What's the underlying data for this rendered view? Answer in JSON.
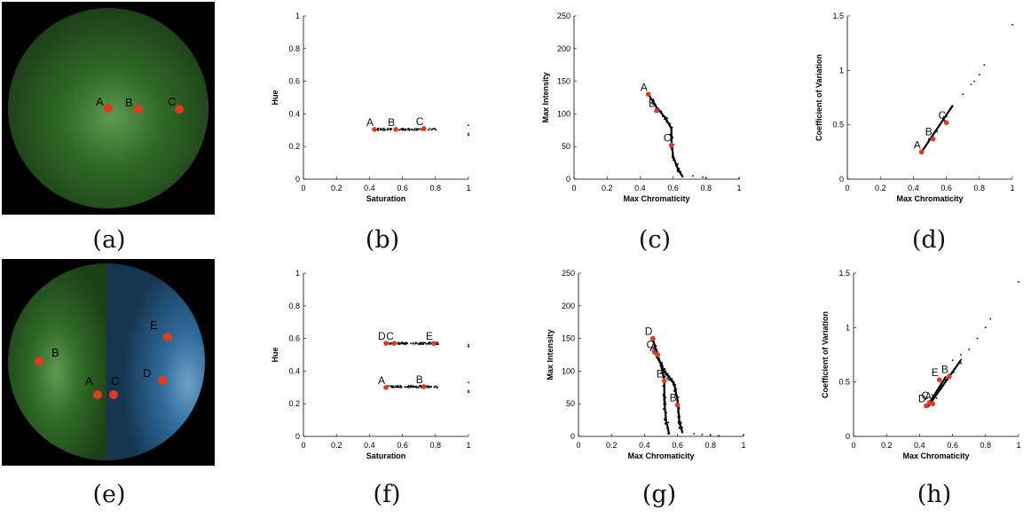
{
  "panels": [
    {
      "caption": "(a)",
      "type": "photo",
      "variant": "green",
      "points": [
        {
          "label": "A"
        },
        {
          "label": "B"
        },
        {
          "label": "C"
        }
      ]
    },
    {
      "caption": "(b)",
      "type": "chart",
      "variant": "hue_single"
    },
    {
      "caption": "(c)",
      "type": "chart",
      "variant": "int_single"
    },
    {
      "caption": "(d)",
      "type": "chart",
      "variant": "cov_single"
    },
    {
      "caption": "(e)",
      "type": "photo",
      "variant": "split",
      "points": [
        {
          "label": "A"
        },
        {
          "label": "B"
        },
        {
          "label": "C"
        },
        {
          "label": "D"
        },
        {
          "label": "E"
        }
      ]
    },
    {
      "caption": "(f)",
      "type": "chart",
      "variant": "hue_dual"
    },
    {
      "caption": "(g)",
      "type": "chart",
      "variant": "int_dual"
    },
    {
      "caption": "(h)",
      "type": "chart",
      "variant": "cov_dual"
    }
  ],
  "colors": {
    "marker": "#e23a1c",
    "green": "#2f6a26",
    "blue": "#2f6c9c",
    "cluster": "#000000"
  },
  "chart_data": [
    {
      "id": "b",
      "type": "scatter",
      "xlabel": "Saturation",
      "ylabel": "Hue",
      "xlim": [
        0,
        1
      ],
      "ylim": [
        0,
        1
      ],
      "xticks": [
        "0",
        "0.2",
        "0.4",
        "0.6",
        "0.8",
        "1"
      ],
      "yticks": [
        "0",
        "0.2",
        "0.4",
        "0.6",
        "0.8",
        "1"
      ],
      "labeled_points": [
        {
          "label": "A",
          "x": 0.43,
          "y": 0.305
        },
        {
          "label": "B",
          "x": 0.56,
          "y": 0.305
        },
        {
          "label": "C",
          "x": 0.73,
          "y": 0.31
        }
      ],
      "clusters": [
        {
          "x_range": [
            0.42,
            0.82
          ],
          "y": 0.305,
          "y_spread": 0.006
        }
      ],
      "outliers": [
        {
          "x": 1.0,
          "y": 0.33
        },
        {
          "x": 1.0,
          "y": 0.28
        },
        {
          "x": 1.0,
          "y": 0.27
        }
      ]
    },
    {
      "id": "c",
      "type": "scatter",
      "xlabel": "Max Chromaticity",
      "ylabel": "Max Intensity",
      "xlim": [
        0,
        1
      ],
      "ylim": [
        0,
        250
      ],
      "xticks": [
        "0",
        "0.2",
        "0.4",
        "0.6",
        "0.8",
        "1"
      ],
      "yticks": [
        "0",
        "50",
        "100",
        "150",
        "200",
        "250"
      ],
      "labeled_points": [
        {
          "label": "A",
          "x": 0.45,
          "y": 130
        },
        {
          "label": "B",
          "x": 0.5,
          "y": 105
        },
        {
          "label": "C",
          "x": 0.59,
          "y": 52
        }
      ],
      "curve": [
        [
          0.45,
          130
        ],
        [
          0.5,
          110
        ],
        [
          0.55,
          95
        ],
        [
          0.59,
          78
        ],
        [
          0.59,
          60
        ],
        [
          0.6,
          35
        ],
        [
          0.63,
          15
        ],
        [
          0.66,
          3
        ]
      ],
      "outliers": [
        {
          "x": 0.72,
          "y": 5
        },
        {
          "x": 0.78,
          "y": 3
        },
        {
          "x": 0.8,
          "y": 2
        },
        {
          "x": 1.0,
          "y": 1
        }
      ]
    },
    {
      "id": "d",
      "type": "scatter",
      "xlabel": "Max Chromaticity",
      "ylabel": "Coefficient of Variation",
      "xlim": [
        0,
        1
      ],
      "ylim": [
        0,
        1.5
      ],
      "xticks": [
        "0",
        "0.2",
        "0.4",
        "0.6",
        "0.8",
        "1"
      ],
      "yticks": [
        "0",
        "0.5",
        "1",
        "1.5"
      ],
      "labeled_points": [
        {
          "label": "A",
          "x": 0.45,
          "y": 0.25
        },
        {
          "label": "B",
          "x": 0.52,
          "y": 0.37
        },
        {
          "label": "C",
          "x": 0.6,
          "y": 0.52
        }
      ],
      "line": [
        [
          0.45,
          0.25
        ],
        [
          0.64,
          0.68
        ]
      ],
      "outliers": [
        {
          "x": 0.7,
          "y": 0.78
        },
        {
          "x": 0.75,
          "y": 0.87
        },
        {
          "x": 0.77,
          "y": 0.9
        },
        {
          "x": 0.8,
          "y": 0.96
        },
        {
          "x": 0.83,
          "y": 1.05
        },
        {
          "x": 1.0,
          "y": 1.42
        }
      ]
    },
    {
      "id": "f",
      "type": "scatter",
      "xlabel": "Saturation",
      "ylabel": "Hue",
      "xlim": [
        0,
        1
      ],
      "ylim": [
        0,
        1
      ],
      "xticks": [
        "0",
        "0.2",
        "0.4",
        "0.6",
        "0.8",
        "1"
      ],
      "yticks": [
        "0",
        "0.2",
        "0.4",
        "0.6",
        "0.8",
        "1"
      ],
      "labeled_points": [
        {
          "label": "D",
          "x": 0.5,
          "y": 0.57
        },
        {
          "label": "C",
          "x": 0.55,
          "y": 0.57
        },
        {
          "label": "E",
          "x": 0.79,
          "y": 0.57
        },
        {
          "label": "A",
          "x": 0.5,
          "y": 0.3
        },
        {
          "label": "B",
          "x": 0.73,
          "y": 0.305
        }
      ],
      "clusters": [
        {
          "x_range": [
            0.5,
            0.82
          ],
          "y": 0.57,
          "y_spread": 0.006
        },
        {
          "x_range": [
            0.5,
            0.82
          ],
          "y": 0.305,
          "y_spread": 0.006
        }
      ],
      "outliers": [
        {
          "x": 1.0,
          "y": 0.56
        },
        {
          "x": 1.0,
          "y": 0.55
        },
        {
          "x": 1.0,
          "y": 0.33
        },
        {
          "x": 1.0,
          "y": 0.28
        },
        {
          "x": 1.0,
          "y": 0.27
        }
      ]
    },
    {
      "id": "g",
      "type": "scatter",
      "xlabel": "Max Chromaticity",
      "ylabel": "Max Intensity",
      "xlim": [
        0,
        1
      ],
      "ylim": [
        0,
        250
      ],
      "xticks": [
        "0",
        "0.2",
        "0.4",
        "0.6",
        "0.8",
        "1"
      ],
      "yticks": [
        "0",
        "50",
        "100",
        "150",
        "200",
        "250"
      ],
      "labeled_points": [
        {
          "label": "D",
          "x": 0.45,
          "y": 150
        },
        {
          "label": "C",
          "x": 0.46,
          "y": 130
        },
        {
          "label": "A",
          "x": 0.48,
          "y": 125
        },
        {
          "label": "E",
          "x": 0.52,
          "y": 85
        },
        {
          "label": "B",
          "x": 0.6,
          "y": 48
        }
      ],
      "curves": [
        [
          [
            0.45,
            150
          ],
          [
            0.48,
            122
          ],
          [
            0.52,
            100
          ],
          [
            0.55,
            90
          ],
          [
            0.58,
            80
          ],
          [
            0.6,
            55
          ],
          [
            0.61,
            25
          ],
          [
            0.63,
            5
          ]
        ],
        [
          [
            0.46,
            130
          ],
          [
            0.5,
            110
          ],
          [
            0.52,
            85
          ],
          [
            0.52,
            55
          ],
          [
            0.53,
            25
          ],
          [
            0.55,
            3
          ]
        ]
      ],
      "outliers": [
        {
          "x": 0.7,
          "y": 4
        },
        {
          "x": 0.75,
          "y": 3
        },
        {
          "x": 0.8,
          "y": 2
        },
        {
          "x": 0.85,
          "y": 1
        },
        {
          "x": 1.0,
          "y": 2
        }
      ]
    },
    {
      "id": "h",
      "type": "scatter",
      "xlabel": "Max Chromaticity",
      "ylabel": "Coefficient of Variation",
      "xlim": [
        0,
        1
      ],
      "ylim": [
        0,
        1.5
      ],
      "xticks": [
        "0",
        "0.2",
        "0.4",
        "0.6",
        "0.8",
        "1"
      ],
      "yticks": [
        "0",
        "0.5",
        "1",
        "1.5"
      ],
      "labeled_points": [
        {
          "label": "D",
          "x": 0.44,
          "y": 0.28
        },
        {
          "label": "C",
          "x": 0.46,
          "y": 0.31
        },
        {
          "label": "A",
          "x": 0.48,
          "y": 0.3
        },
        {
          "label": "E",
          "x": 0.52,
          "y": 0.52
        },
        {
          "label": "B",
          "x": 0.58,
          "y": 0.55
        }
      ],
      "lines": [
        [
          [
            0.45,
            0.27
          ],
          [
            0.65,
            0.7
          ]
        ],
        [
          [
            0.46,
            0.31
          ],
          [
            0.56,
            0.55
          ]
        ]
      ],
      "outliers": [
        {
          "x": 0.6,
          "y": 0.7
        },
        {
          "x": 0.65,
          "y": 0.75
        },
        {
          "x": 0.7,
          "y": 0.8
        },
        {
          "x": 0.75,
          "y": 0.9
        },
        {
          "x": 0.8,
          "y": 1.0
        },
        {
          "x": 0.83,
          "y": 1.08
        },
        {
          "x": 1.0,
          "y": 1.42
        }
      ]
    }
  ]
}
